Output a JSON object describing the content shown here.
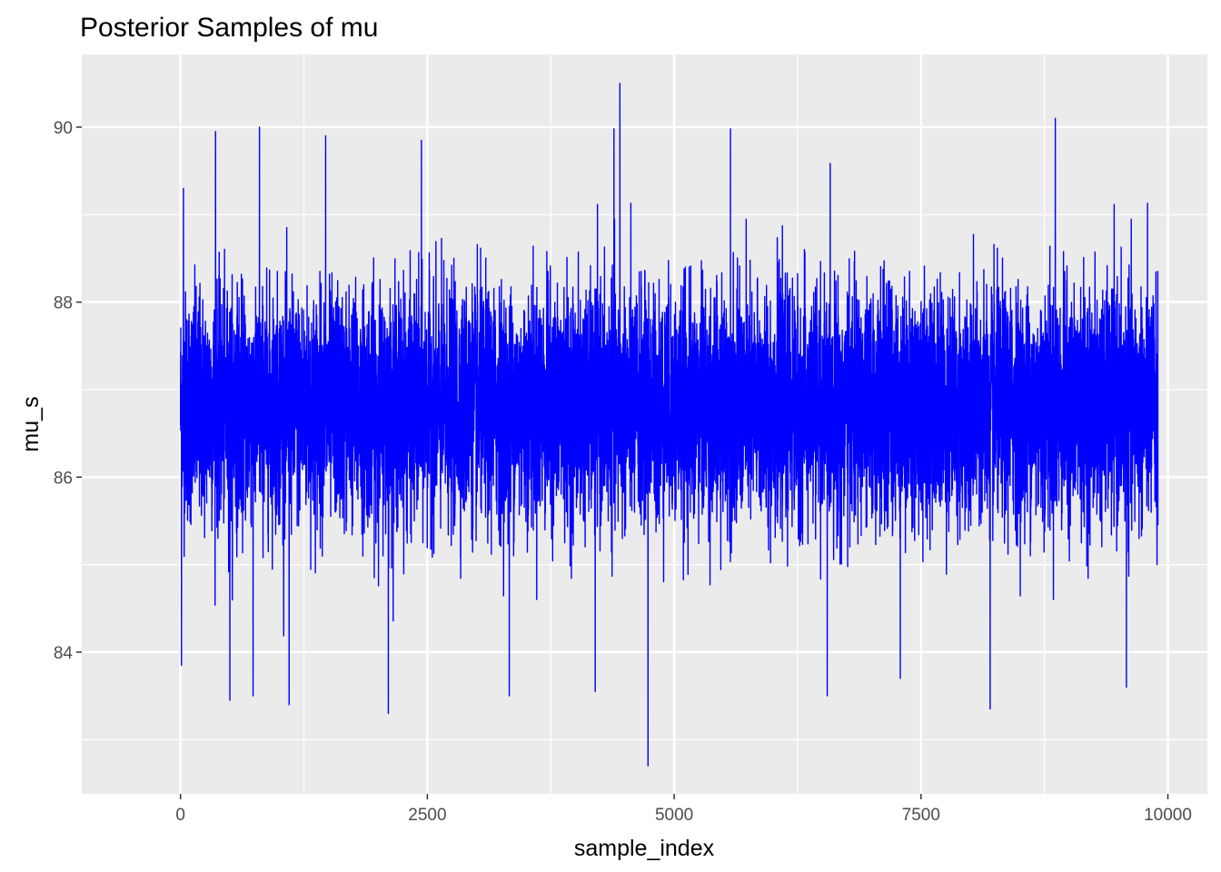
{
  "chart_data": {
    "type": "line",
    "title": "Posterior Samples of mu",
    "xlabel": "sample_index",
    "ylabel": "mu_s",
    "xlim": [
      -1000,
      10400
    ],
    "ylim": [
      82.38,
      90.83
    ],
    "x_ticks": [
      0,
      2500,
      5000,
      7500,
      10000
    ],
    "x_tick_labels": [
      "0",
      "2500",
      "5000",
      "7500",
      "10000"
    ],
    "y_ticks": [
      84,
      86,
      88,
      90
    ],
    "y_tick_labels": [
      "84",
      "86",
      "88",
      "90"
    ],
    "grid": true,
    "legend": "none",
    "series": [
      {
        "color": "#0000ff",
        "n_samples": 9900,
        "mean": 86.8,
        "sd": 0.65,
        "extremes": [
          [
            10,
            83.85
          ],
          [
            30,
            89.3
          ],
          [
            355,
            89.95
          ],
          [
            500,
            83.45
          ],
          [
            735,
            83.5
          ],
          [
            800,
            90.0
          ],
          [
            1100,
            83.4
          ],
          [
            1470,
            89.9
          ],
          [
            2105,
            83.3
          ],
          [
            2440,
            89.85
          ],
          [
            3330,
            83.5
          ],
          [
            4200,
            83.55
          ],
          [
            4390,
            89.98
          ],
          [
            4450,
            90.5
          ],
          [
            4735,
            82.7
          ],
          [
            5570,
            89.98
          ],
          [
            6550,
            83.5
          ],
          [
            7290,
            83.7
          ],
          [
            8200,
            83.35
          ],
          [
            8860,
            90.1
          ],
          [
            9580,
            83.6
          ],
          [
            9890,
            85.0
          ]
        ]
      }
    ]
  }
}
